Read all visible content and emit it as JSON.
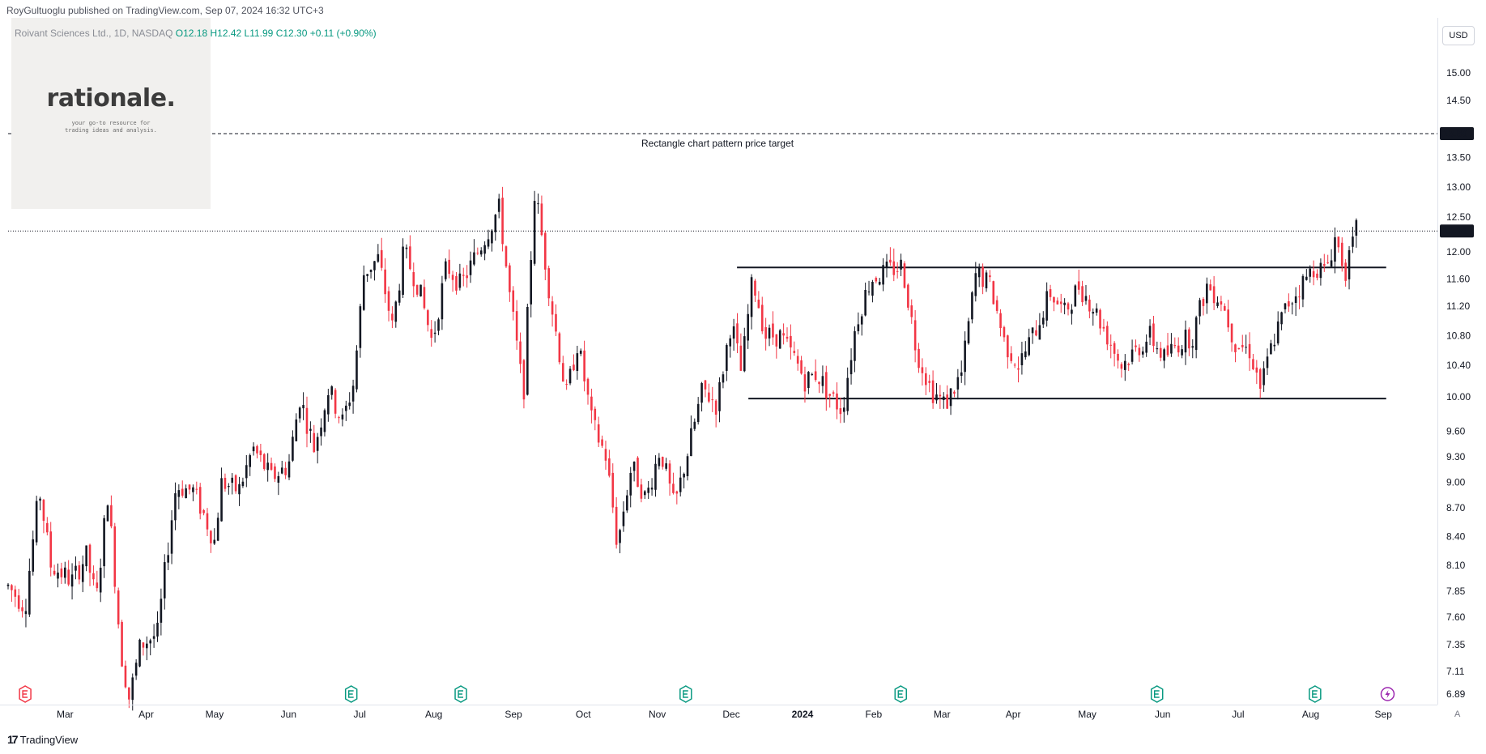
{
  "header": {
    "credit": "RoyGultuoglu published on TradingView.com, Sep 07, 2024 16:32 UTC+3"
  },
  "legend": {
    "symbol": "Roivant Sciences Ltd., 1D, NASDAQ",
    "open": "O12.18",
    "high": "H12.42",
    "low": "L11.99",
    "close": "C12.30",
    "change": "+0.11 (+0.90%)"
  },
  "watermark": {
    "title": "rationale.",
    "subtitle": "your go-to resource for trading ideas and analysis."
  },
  "price_scale": {
    "currency": "USD",
    "auto_label": "A"
  },
  "footer": {
    "brand": "TradingView",
    "brand_mark": "17"
  },
  "colors": {
    "up": "#131722",
    "down": "#f23645",
    "accent": "#2962ff",
    "event": "#089981",
    "dividend": "#9c27b0"
  },
  "chart_data": {
    "type": "candlestick",
    "annotations": {
      "target_label": "Rectangle chart pattern price target",
      "target_price": 13.9,
      "resistance": 11.77,
      "support": 9.98,
      "last_price": 12.3
    },
    "yaxis_ticks": [
      "15.00",
      "14.50",
      "13.50",
      "13.00",
      "12.50",
      "12.00",
      "11.60",
      "11.20",
      "10.80",
      "10.40",
      "10.00",
      "9.60",
      "9.30",
      "9.00",
      "8.70",
      "8.40",
      "8.10",
      "7.85",
      "7.60",
      "7.35",
      "7.11",
      "6.89"
    ],
    "yaxis_badges": [
      "13.90",
      "12.30"
    ],
    "months": [
      {
        "label": "Mar",
        "t": 0.04
      },
      {
        "label": "Apr",
        "t": 0.097
      },
      {
        "label": "May",
        "t": 0.145
      },
      {
        "label": "Jun",
        "t": 0.197
      },
      {
        "label": "Jul",
        "t": 0.247
      },
      {
        "label": "Aug",
        "t": 0.299
      },
      {
        "label": "Sep",
        "t": 0.355
      },
      {
        "label": "Oct",
        "t": 0.404
      },
      {
        "label": "Nov",
        "t": 0.456
      },
      {
        "label": "Dec",
        "t": 0.508
      },
      {
        "label": "2024",
        "t": 0.558
      },
      {
        "label": "Feb",
        "t": 0.608
      },
      {
        "label": "Mar",
        "t": 0.656
      },
      {
        "label": "Apr",
        "t": 0.706
      },
      {
        "label": "May",
        "t": 0.758
      },
      {
        "label": "Jun",
        "t": 0.811
      },
      {
        "label": "Jul",
        "t": 0.864
      },
      {
        "label": "Aug",
        "t": 0.915
      },
      {
        "label": "Sep",
        "t": 0.966
      }
    ],
    "events": [
      {
        "t": 0.012,
        "kind": "earnings-red"
      },
      {
        "t": 0.241,
        "kind": "earnings"
      },
      {
        "t": 0.318,
        "kind": "earnings"
      },
      {
        "t": 0.476,
        "kind": "earnings"
      },
      {
        "t": 0.627,
        "kind": "earnings"
      },
      {
        "t": 0.807,
        "kind": "earnings"
      },
      {
        "t": 0.918,
        "kind": "earnings"
      },
      {
        "t": 0.969,
        "kind": "dividend"
      }
    ],
    "anchors": [
      [
        0.0,
        7.9
      ],
      [
        0.012,
        7.7
      ],
      [
        0.022,
        8.9
      ],
      [
        0.03,
        8.1
      ],
      [
        0.045,
        7.95
      ],
      [
        0.055,
        8.2
      ],
      [
        0.062,
        7.75
      ],
      [
        0.07,
        8.85
      ],
      [
        0.079,
        7.3
      ],
      [
        0.085,
        6.85
      ],
      [
        0.093,
        7.35
      ],
      [
        0.105,
        7.45
      ],
      [
        0.118,
        8.95
      ],
      [
        0.13,
        8.9
      ],
      [
        0.145,
        8.35
      ],
      [
        0.15,
        9.0
      ],
      [
        0.162,
        8.9
      ],
      [
        0.172,
        9.4
      ],
      [
        0.185,
        9.05
      ],
      [
        0.197,
        9.2
      ],
      [
        0.205,
        10.0
      ],
      [
        0.215,
        9.4
      ],
      [
        0.225,
        10.1
      ],
      [
        0.235,
        9.7
      ],
      [
        0.243,
        10.2
      ],
      [
        0.25,
        11.7
      ],
      [
        0.26,
        11.9
      ],
      [
        0.27,
        10.9
      ],
      [
        0.278,
        12.0
      ],
      [
        0.288,
        11.5
      ],
      [
        0.298,
        10.7
      ],
      [
        0.308,
        11.8
      ],
      [
        0.318,
        11.5
      ],
      [
        0.331,
        12.05
      ],
      [
        0.345,
        12.65
      ],
      [
        0.352,
        11.4
      ],
      [
        0.362,
        10.0
      ],
      [
        0.37,
        12.95
      ],
      [
        0.381,
        11.3
      ],
      [
        0.392,
        10.0
      ],
      [
        0.4,
        10.7
      ],
      [
        0.41,
        9.7
      ],
      [
        0.42,
        9.3
      ],
      [
        0.428,
        8.3
      ],
      [
        0.438,
        9.2
      ],
      [
        0.448,
        8.8
      ],
      [
        0.458,
        9.4
      ],
      [
        0.468,
        8.7
      ],
      [
        0.478,
        9.4
      ],
      [
        0.488,
        10.1
      ],
      [
        0.498,
        9.9
      ],
      [
        0.508,
        11.0
      ],
      [
        0.515,
        10.3
      ],
      [
        0.523,
        11.6
      ],
      [
        0.532,
        10.8
      ],
      [
        0.542,
        10.8
      ],
      [
        0.552,
        10.5
      ],
      [
        0.56,
        10.2
      ],
      [
        0.568,
        10.3
      ],
      [
        0.578,
        10.0
      ],
      [
        0.586,
        9.85
      ],
      [
        0.596,
        11.0
      ],
      [
        0.606,
        11.6
      ],
      [
        0.616,
        11.7
      ],
      [
        0.628,
        11.8
      ],
      [
        0.638,
        10.6
      ],
      [
        0.648,
        10.1
      ],
      [
        0.658,
        9.9
      ],
      [
        0.67,
        10.3
      ],
      [
        0.68,
        11.7
      ],
      [
        0.69,
        11.5
      ],
      [
        0.7,
        10.7
      ],
      [
        0.71,
        10.4
      ],
      [
        0.722,
        10.9
      ],
      [
        0.732,
        11.4
      ],
      [
        0.742,
        11.1
      ],
      [
        0.752,
        11.5
      ],
      [
        0.762,
        11.2
      ],
      [
        0.772,
        10.8
      ],
      [
        0.782,
        10.4
      ],
      [
        0.792,
        10.6
      ],
      [
        0.802,
        10.8
      ],
      [
        0.812,
        10.5
      ],
      [
        0.822,
        10.7
      ],
      [
        0.832,
        10.8
      ],
      [
        0.842,
        11.5
      ],
      [
        0.852,
        11.3
      ],
      [
        0.862,
        10.7
      ],
      [
        0.872,
        10.6
      ],
      [
        0.88,
        10.1
      ],
      [
        0.888,
        10.7
      ],
      [
        0.898,
        11.2
      ],
      [
        0.908,
        11.5
      ],
      [
        0.918,
        11.8
      ],
      [
        0.925,
        11.7
      ],
      [
        0.932,
        12.2
      ],
      [
        0.94,
        11.7
      ],
      [
        0.947,
        12.3
      ]
    ]
  }
}
